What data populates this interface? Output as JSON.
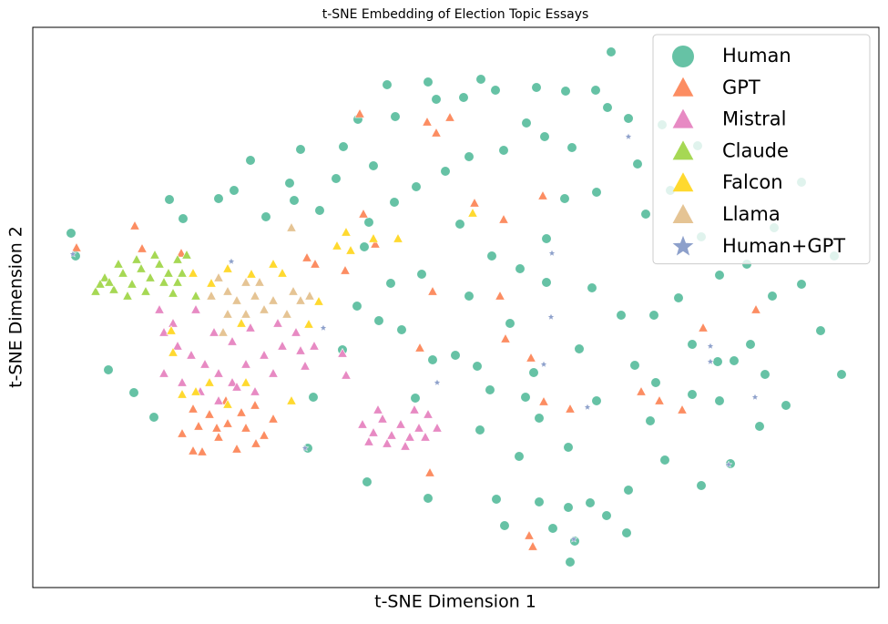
{
  "chart_data": {
    "type": "scatter",
    "title": "t-SNE Embedding of Election Topic Essays",
    "x_label": "t-SNE Dimension 1",
    "y_label": "t-SNE Dimension 2",
    "xlim": [
      36,
      965
    ],
    "ylim": [
      -645,
      -30
    ],
    "legend": "upper right",
    "series": [
      {
        "name": "Human",
        "color": "#66c2a5",
        "marker": "circle",
        "x": [
          78,
          83,
          119,
          147,
          169,
          186,
          201,
          240,
          257,
          275,
          292,
          318,
          330,
          323,
          351,
          369,
          377,
          393,
          410,
          425,
          434,
          470,
          479,
          509,
          528,
          544,
          589,
          621,
          654,
          671,
          667,
          578,
          598,
          628,
          553,
          515,
          489,
          457,
          433,
          405,
          400,
          429,
          392,
          416,
          441,
          475,
          500,
          524,
          538,
          577,
          592,
          624,
          570,
          545,
          592,
          624,
          648,
          690,
          607,
          631,
          666,
          688,
          626,
          554,
          470,
          403,
          338,
          344,
          376,
          456,
          527,
          730,
          770,
          802,
          834,
          863,
          924,
          901,
          880,
          848,
          790,
          745,
          718,
          697,
          655,
          714,
          760,
          806,
          824,
          770,
          820,
          850,
          880,
          916,
          736,
          709,
          700,
          690,
          727,
          766,
          655,
          620,
          600,
          571,
          540,
          505,
          463,
          515,
          560,
          636,
          682,
          650,
          600,
          586,
          720,
          790,
          760,
          840,
          788
        ],
        "y": [
          -256,
          -281,
          -406,
          -431,
          -458,
          -219,
          -240,
          -218,
          -209,
          -176,
          -238,
          -201,
          -164,
          -220,
          -231,
          -196,
          -161,
          -131,
          -182,
          -93,
          -128,
          -90,
          -109,
          -107,
          -87,
          -99,
          -96,
          -100,
          -99,
          -57,
          -118,
          -135,
          -150,
          -162,
          -165,
          -172,
          -188,
          -205,
          -222,
          -244,
          -271,
          -311,
          -336,
          -352,
          -362,
          -395,
          -390,
          -402,
          -428,
          -436,
          -459,
          -491,
          -501,
          -548,
          -551,
          -557,
          -552,
          -538,
          -580,
          -594,
          -566,
          -585,
          -617,
          -577,
          -547,
          -529,
          -492,
          -436,
          -384,
          -437,
          -472,
          -505,
          -533,
          -509,
          -468,
          -445,
          -411,
          -363,
          -312,
          -325,
          -302,
          -327,
          -346,
          -401,
          -440,
          -462,
          -433,
          -396,
          -378,
          -260,
          -290,
          -250,
          -200,
          -281,
          -209,
          -235,
          -180,
          -130,
          -137,
          -160,
          -211,
          -218,
          -262,
          -295,
          -281,
          -246,
          -301,
          -325,
          -355,
          -383,
          -346,
          -316,
          -310,
          -409,
          -420,
          -440,
          -378,
          -411,
          -397
        ]
      },
      {
        "name": "GPT",
        "color": "#fc8d62",
        "marker": "triangle",
        "x": [
          84,
          148,
          156,
          199,
          212,
          230,
          250,
          270,
          240,
          200,
          222,
          260,
          290,
          300,
          280,
          248,
          218,
          238,
          265,
          212,
          281,
          395,
          469,
          494,
          479,
          399,
          412,
          461,
          475,
          549,
          555,
          583,
          596,
          553,
          597,
          626,
          724,
          749,
          830,
          772,
          581,
          585,
          472,
          346,
          379,
          337,
          521,
          704
        ],
        "y": [
          -272,
          -248,
          -273,
          -278,
          -449,
          -455,
          -465,
          -470,
          -480,
          -476,
          -496,
          -493,
          -478,
          -460,
          -445,
          -440,
          -468,
          -470,
          -453,
          -495,
          -487,
          -125,
          -134,
          -129,
          -146,
          -235,
          -268,
          -382,
          -320,
          -325,
          -372,
          -393,
          -215,
          -241,
          -441,
          -449,
          -440,
          -450,
          -340,
          -360,
          -588,
          -600,
          -519,
          -290,
          -297,
          -283,
          -223,
          -430
        ]
      },
      {
        "name": "Mistral",
        "color": "#e78ac3",
        "marker": "triangle",
        "x": [
          398,
          410,
          420,
          430,
          440,
          450,
          460,
          470,
          480,
          405,
          425,
          445,
          467,
          415,
          455,
          180,
          195,
          210,
          225,
          240,
          255,
          270,
          290,
          300,
          310,
          330,
          200,
          220,
          240,
          260,
          280,
          175,
          190,
          215,
          235,
          255,
          275,
          305,
          325,
          180,
          380,
          376,
          345,
          335
        ],
        "y": [
          -466,
          -475,
          -460,
          -478,
          -466,
          -480,
          -470,
          -455,
          -470,
          -485,
          -487,
          -490,
          -480,
          -450,
          -450,
          -365,
          -380,
          -390,
          -400,
          -410,
          -420,
          -400,
          -390,
          -410,
          -380,
          -385,
          -420,
          -430,
          -440,
          -425,
          -430,
          -340,
          -355,
          -340,
          -365,
          -375,
          -360,
          -355,
          -365,
          -410,
          -412,
          -388,
          -380,
          -402
        ]
      },
      {
        "name": "Claude",
        "color": "#a6d854",
        "marker": "triangle",
        "x": [
          105,
          115,
          125,
          135,
          145,
          155,
          165,
          175,
          185,
          195,
          160,
          140,
          120,
          130,
          150,
          170,
          180,
          200,
          205,
          215,
          195,
          110,
          190
        ],
        "y": [
          -320,
          -305,
          -318,
          -300,
          -312,
          -295,
          -305,
          -290,
          -300,
          -310,
          -320,
          -325,
          -310,
          -290,
          -285,
          -280,
          -310,
          -300,
          -280,
          -325,
          -285,
          -312,
          -322
        ]
      },
      {
        "name": "Falcon",
        "color": "#ffd92f",
        "marker": "triangle",
        "x": [
          200,
          215,
          188,
          190,
          230,
          250,
          270,
          320,
          310,
          300,
          339,
          350,
          370,
          385,
          410,
          437,
          519,
          380,
          276,
          232,
          212,
          250,
          265
        ],
        "y": [
          -433,
          -430,
          -363,
          -387,
          -420,
          -444,
          -420,
          -440,
          -300,
          -290,
          -356,
          -331,
          -270,
          -275,
          -262,
          -262,
          -234,
          -255,
          -301,
          -311,
          -300,
          -295,
          -355
        ]
      },
      {
        "name": "Llama",
        "color": "#e5c494",
        "marker": "triangle",
        "x": [
          240,
          250,
          260,
          270,
          280,
          290,
          300,
          315,
          330,
          340,
          250,
          270,
          245,
          320,
          322,
          232,
          285
        ],
        "y": [
          -305,
          -320,
          -330,
          -310,
          -325,
          -340,
          -330,
          -345,
          -330,
          -325,
          -345,
          -345,
          -365,
          -250,
          -320,
          -325,
          -310
        ]
      },
      {
        "name": "Human+GPT",
        "color": "#8da0cb",
        "marker": "star",
        "x": [
          80,
          254,
          355,
          480,
          597,
          605,
          690,
          645,
          780,
          829,
          800,
          335,
          630,
          606,
          780
        ],
        "y": [
          -279,
          -287,
          -360,
          -420,
          -400,
          -348,
          -150,
          -447,
          -397,
          -436,
          -510,
          -492,
          -592,
          -278,
          -380
        ]
      }
    ]
  }
}
